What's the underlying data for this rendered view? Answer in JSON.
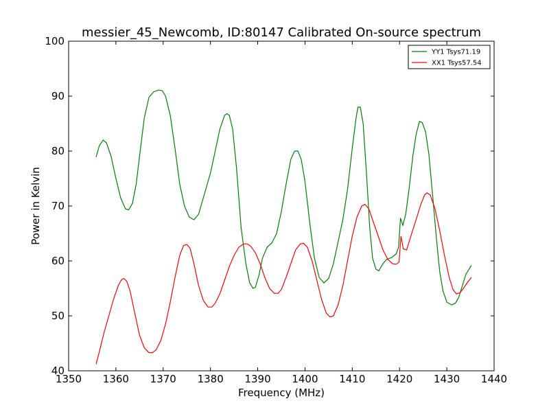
{
  "chart_data": {
    "type": "line",
    "title": "messier_45_Newcomb, ID:80147 Calibrated On-source spectrum",
    "xlabel": "Frequency (MHz)",
    "ylabel": "Power in Kelvin",
    "xlim": [
      1350,
      1440
    ],
    "ylim": [
      40,
      100
    ],
    "xticks": [
      1350,
      1360,
      1370,
      1380,
      1390,
      1400,
      1410,
      1420,
      1430,
      1440
    ],
    "yticks": [
      40,
      50,
      60,
      70,
      80,
      90,
      100
    ],
    "grid": false,
    "legend_position": "top-right",
    "series": [
      {
        "name": "YY1 Tsys71.19",
        "color": "#008000",
        "points": [
          [
            1355.8,
            78.9
          ],
          [
            1356.5,
            81.0
          ],
          [
            1357.3,
            82.0
          ],
          [
            1358.0,
            81.5
          ],
          [
            1359.0,
            79.0
          ],
          [
            1360.0,
            75.0
          ],
          [
            1361.0,
            71.5
          ],
          [
            1362.0,
            69.5
          ],
          [
            1362.7,
            69.3
          ],
          [
            1363.5,
            70.5
          ],
          [
            1364.3,
            74.0
          ],
          [
            1365.0,
            79.0
          ],
          [
            1366.0,
            86.0
          ],
          [
            1367.0,
            89.8
          ],
          [
            1368.0,
            90.8
          ],
          [
            1369.0,
            91.1
          ],
          [
            1369.8,
            91.0
          ],
          [
            1370.5,
            90.0
          ],
          [
            1371.5,
            86.5
          ],
          [
            1372.5,
            80.5
          ],
          [
            1373.5,
            74.0
          ],
          [
            1374.5,
            70.0
          ],
          [
            1375.5,
            68.0
          ],
          [
            1376.5,
            67.5
          ],
          [
            1377.5,
            68.5
          ],
          [
            1378.5,
            71.5
          ],
          [
            1380.0,
            76.0
          ],
          [
            1381.0,
            80.0
          ],
          [
            1382.0,
            84.0
          ],
          [
            1383.0,
            86.5
          ],
          [
            1383.5,
            86.8
          ],
          [
            1384.0,
            86.5
          ],
          [
            1384.7,
            84.0
          ],
          [
            1385.5,
            77.0
          ],
          [
            1386.5,
            66.0
          ],
          [
            1387.5,
            59.5
          ],
          [
            1388.3,
            56.0
          ],
          [
            1389.0,
            55.0
          ],
          [
            1389.5,
            55.2
          ],
          [
            1390.3,
            57.5
          ],
          [
            1391.0,
            60.5
          ],
          [
            1392.0,
            62.5
          ],
          [
            1393.0,
            63.3
          ],
          [
            1394.0,
            65.0
          ],
          [
            1395.0,
            69.0
          ],
          [
            1396.0,
            74.0
          ],
          [
            1397.0,
            78.5
          ],
          [
            1397.8,
            80.0
          ],
          [
            1398.5,
            80.0
          ],
          [
            1399.2,
            78.5
          ],
          [
            1400.0,
            74.5
          ],
          [
            1401.0,
            67.0
          ],
          [
            1402.0,
            60.5
          ],
          [
            1403.0,
            57.0
          ],
          [
            1404.0,
            56.0
          ],
          [
            1405.0,
            56.8
          ],
          [
            1406.0,
            59.5
          ],
          [
            1407.0,
            63.5
          ],
          [
            1408.0,
            67.5
          ],
          [
            1409.0,
            73.0
          ],
          [
            1410.0,
            80.5
          ],
          [
            1410.8,
            86.0
          ],
          [
            1411.2,
            88.0
          ],
          [
            1411.7,
            88.0
          ],
          [
            1412.3,
            85.0
          ],
          [
            1413.0,
            76.0
          ],
          [
            1413.7,
            66.0
          ],
          [
            1414.3,
            60.5
          ],
          [
            1415.0,
            58.5
          ],
          [
            1415.6,
            58.2
          ],
          [
            1416.5,
            59.5
          ],
          [
            1417.3,
            60.3
          ],
          [
            1418.3,
            60.6
          ],
          [
            1419.3,
            61.3
          ],
          [
            1419.8,
            62.5
          ],
          [
            1420.2,
            67.8
          ],
          [
            1420.7,
            66.5
          ],
          [
            1421.3,
            68.5
          ],
          [
            1422.0,
            73.0
          ],
          [
            1422.8,
            79.0
          ],
          [
            1423.5,
            83.0
          ],
          [
            1424.2,
            85.4
          ],
          [
            1424.8,
            85.2
          ],
          [
            1425.5,
            83.5
          ],
          [
            1426.2,
            79.5
          ],
          [
            1427.0,
            72.0
          ],
          [
            1427.8,
            64.0
          ],
          [
            1428.5,
            58.0
          ],
          [
            1429.2,
            54.5
          ],
          [
            1430.0,
            52.5
          ],
          [
            1431.0,
            52.0
          ],
          [
            1431.8,
            52.3
          ],
          [
            1432.5,
            53.3
          ],
          [
            1433.3,
            55.5
          ],
          [
            1434.0,
            57.5
          ],
          [
            1435.2,
            59.2
          ]
        ]
      },
      {
        "name": "XX1 Tsys57.54",
        "color": "#ff0000",
        "points": [
          [
            1355.8,
            41.2
          ],
          [
            1356.5,
            43.5
          ],
          [
            1357.5,
            47.0
          ],
          [
            1358.5,
            50.0
          ],
          [
            1359.5,
            53.0
          ],
          [
            1360.5,
            55.5
          ],
          [
            1361.2,
            56.6
          ],
          [
            1361.7,
            56.8
          ],
          [
            1362.3,
            56.3
          ],
          [
            1363.0,
            54.5
          ],
          [
            1364.0,
            50.5
          ],
          [
            1365.0,
            46.5
          ],
          [
            1366.0,
            44.2
          ],
          [
            1367.0,
            43.3
          ],
          [
            1367.7,
            43.3
          ],
          [
            1368.5,
            43.8
          ],
          [
            1369.5,
            45.5
          ],
          [
            1370.5,
            48.5
          ],
          [
            1371.5,
            52.5
          ],
          [
            1372.5,
            57.0
          ],
          [
            1373.5,
            61.0
          ],
          [
            1374.3,
            62.8
          ],
          [
            1375.0,
            63.0
          ],
          [
            1375.7,
            62.3
          ],
          [
            1376.5,
            59.5
          ],
          [
            1377.5,
            55.5
          ],
          [
            1378.5,
            52.8
          ],
          [
            1379.5,
            51.6
          ],
          [
            1380.3,
            51.6
          ],
          [
            1381.0,
            52.3
          ],
          [
            1382.0,
            54.0
          ],
          [
            1383.0,
            56.5
          ],
          [
            1384.0,
            59.0
          ],
          [
            1385.0,
            61.0
          ],
          [
            1386.0,
            62.5
          ],
          [
            1387.0,
            63.1
          ],
          [
            1387.8,
            63.1
          ],
          [
            1388.5,
            62.7
          ],
          [
            1389.5,
            61.5
          ],
          [
            1390.5,
            59.5
          ],
          [
            1391.5,
            57.0
          ],
          [
            1392.5,
            55.0
          ],
          [
            1393.5,
            54.1
          ],
          [
            1394.3,
            54.1
          ],
          [
            1395.0,
            54.8
          ],
          [
            1396.0,
            57.0
          ],
          [
            1397.0,
            59.5
          ],
          [
            1398.0,
            62.0
          ],
          [
            1399.0,
            63.1
          ],
          [
            1399.7,
            63.2
          ],
          [
            1400.5,
            62.5
          ],
          [
            1401.5,
            60.0
          ],
          [
            1402.5,
            56.5
          ],
          [
            1403.5,
            53.0
          ],
          [
            1404.5,
            50.5
          ],
          [
            1405.3,
            49.8
          ],
          [
            1406.0,
            50.0
          ],
          [
            1407.0,
            52.0
          ],
          [
            1408.0,
            55.5
          ],
          [
            1409.0,
            60.0
          ],
          [
            1410.0,
            64.5
          ],
          [
            1411.0,
            68.0
          ],
          [
            1412.0,
            70.0
          ],
          [
            1412.7,
            70.3
          ],
          [
            1413.5,
            69.5
          ],
          [
            1414.5,
            67.0
          ],
          [
            1415.5,
            64.5
          ],
          [
            1416.5,
            62.0
          ],
          [
            1417.5,
            60.3
          ],
          [
            1418.5,
            59.5
          ],
          [
            1419.3,
            59.4
          ],
          [
            1419.9,
            59.8
          ],
          [
            1420.3,
            64.5
          ],
          [
            1420.8,
            62.2
          ],
          [
            1421.5,
            62.0
          ],
          [
            1422.5,
            64.8
          ],
          [
            1423.5,
            67.5
          ],
          [
            1424.5,
            70.3
          ],
          [
            1425.3,
            72.0
          ],
          [
            1425.8,
            72.4
          ],
          [
            1426.5,
            72.0
          ],
          [
            1427.5,
            69.5
          ],
          [
            1428.5,
            65.5
          ],
          [
            1429.5,
            61.0
          ],
          [
            1430.5,
            57.0
          ],
          [
            1431.3,
            54.8
          ],
          [
            1432.0,
            54.0
          ],
          [
            1432.8,
            54.2
          ],
          [
            1433.5,
            55.0
          ],
          [
            1434.3,
            56.0
          ],
          [
            1435.2,
            57.0
          ]
        ]
      }
    ]
  }
}
